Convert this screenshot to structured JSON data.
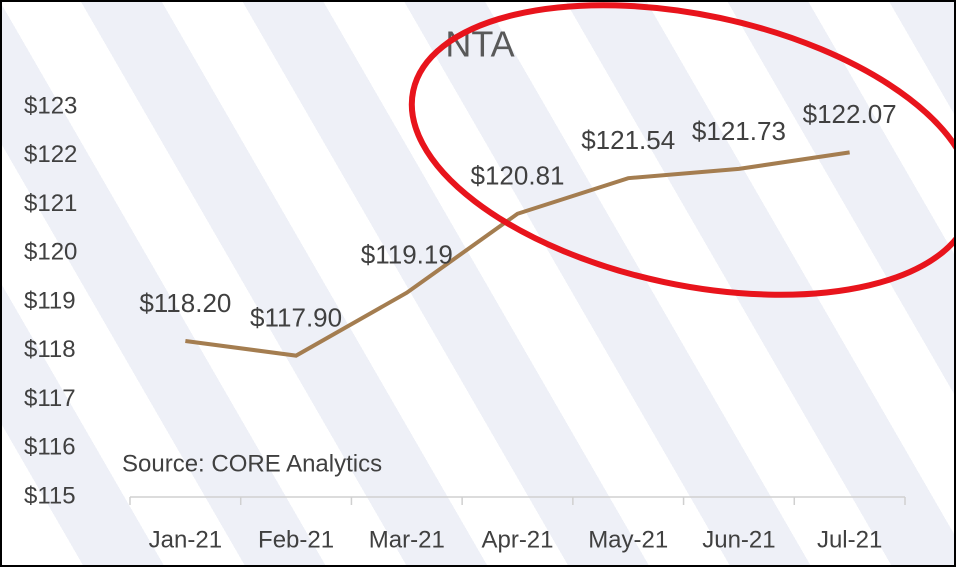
{
  "chart_data": {
    "type": "line",
    "title": "NTA",
    "categories": [
      "Jan-21",
      "Feb-21",
      "Mar-21",
      "Apr-21",
      "May-21",
      "Jun-21",
      "Jul-21"
    ],
    "series": [
      {
        "name": "NTA",
        "color": "#a47d50",
        "values": [
          118.2,
          117.9,
          119.19,
          120.81,
          121.54,
          121.73,
          122.07
        ],
        "value_labels": [
          "$118.20",
          "$117.90",
          "$119.19",
          "$120.81",
          "$121.54",
          "$121.73",
          "$122.07"
        ]
      }
    ],
    "ylim": [
      115,
      123
    ],
    "yticks": [
      {
        "value": 115,
        "label": "$115"
      },
      {
        "value": 116,
        "label": "$116"
      },
      {
        "value": 117,
        "label": "$117"
      },
      {
        "value": 118,
        "label": "$118"
      },
      {
        "value": 119,
        "label": "$119"
      },
      {
        "value": 120,
        "label": "$120"
      },
      {
        "value": 121,
        "label": "$121"
      },
      {
        "value": 122,
        "label": "$122"
      },
      {
        "value": 123,
        "label": "$123"
      }
    ],
    "annotations": [
      "Source:  CORE Analytics"
    ]
  }
}
